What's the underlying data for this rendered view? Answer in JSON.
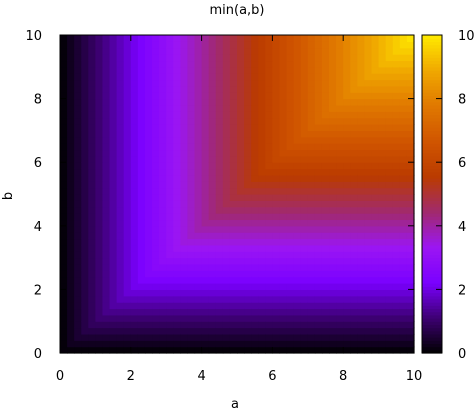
{
  "chart_data": {
    "type": "heatmap",
    "title": "min(a,b)",
    "xlabel": "a",
    "ylabel": "b",
    "xlim": [
      0,
      10
    ],
    "ylim": [
      0,
      10
    ],
    "x_ticks": [
      0,
      2,
      4,
      6,
      8,
      10
    ],
    "y_ticks": [
      0,
      2,
      4,
      6,
      8,
      10
    ],
    "function": "min(a,b)",
    "colorbar": {
      "range": [
        0,
        10
      ],
      "ticks": [
        0,
        2,
        4,
        6,
        8,
        10
      ]
    },
    "grid": false,
    "colormap": [
      "#000000",
      "#3d0072",
      "#7a00ff",
      "#9b16f3",
      "#a12a6d",
      "#ba3b00",
      "#d05500",
      "#e07800",
      "#f0a800",
      "#ffea00"
    ]
  }
}
